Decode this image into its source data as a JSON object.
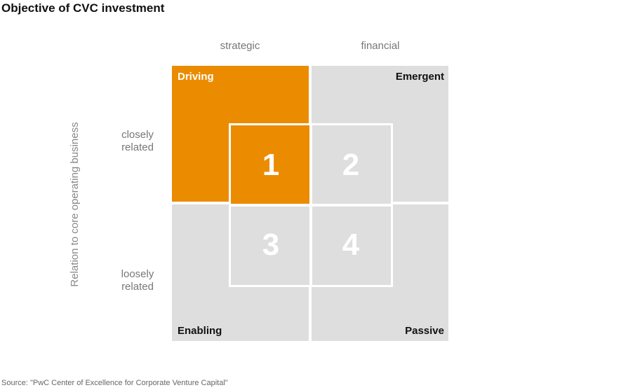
{
  "title": "Objective of CVC investment",
  "columns": [
    "strategic",
    "financial"
  ],
  "rows": [
    {
      "line1": "closely",
      "line2": "related"
    },
    {
      "line1": "loosely",
      "line2": "related"
    }
  ],
  "y_axis_label": "Relation to core operating business",
  "quadrants": {
    "top_left": "Driving",
    "top_right": "Emergent",
    "bottom_left": "Enabling",
    "bottom_right": "Passive"
  },
  "cells": [
    "1",
    "2",
    "3",
    "4"
  ],
  "colors": {
    "orange": "#eb8c00",
    "gray": "#dedede",
    "grid_lines": "#ffffff"
  },
  "source": "Source: \"PwC Center of Excellence for Corporate Venture Capital\""
}
